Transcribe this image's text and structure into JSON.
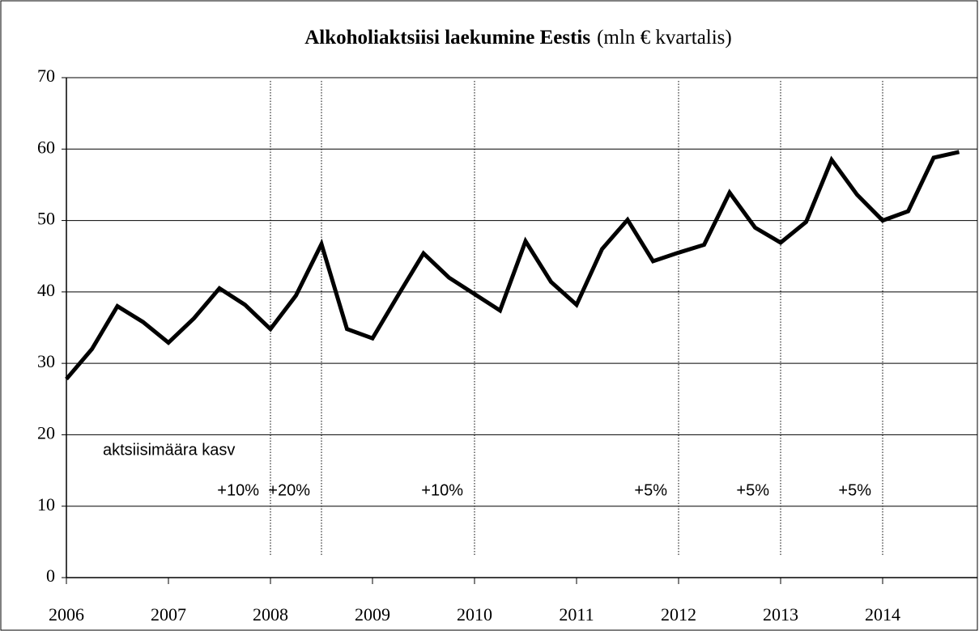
{
  "chart_data": {
    "type": "line",
    "title": "Alkoholiaktsiisi laekumine Eestis",
    "subtitle": "(mln € kvartalis)",
    "x": [
      2006,
      2006.25,
      2006.5,
      2006.75,
      2007,
      2007.25,
      2007.5,
      2007.75,
      2008,
      2008.25,
      2008.5,
      2008.75,
      2009,
      2009.25,
      2009.5,
      2009.75,
      2010,
      2010.25,
      2010.5,
      2010.75,
      2011,
      2011.25,
      2011.5,
      2011.75,
      2012,
      2012.25,
      2012.5,
      2012.75,
      2013,
      2013.25,
      2013.5,
      2013.75,
      2014,
      2014.25,
      2014.5,
      2014.75
    ],
    "series": [
      {
        "color": "#000000",
        "values": [
          27.8,
          32,
          38,
          35.8,
          32.9,
          36.3,
          40.5,
          38.2,
          34.8,
          39.5,
          46.7,
          34.8,
          33.5,
          39.5,
          45.4,
          42,
          39.7,
          37.4,
          47.1,
          41.4,
          38.2,
          46,
          50.1,
          44.3,
          45.5,
          46.6,
          53.9,
          49,
          46.9,
          49.8,
          58.5,
          53.6,
          50,
          51.3,
          58.8,
          59.6
        ]
      }
    ],
    "xlim": [
      2006,
      2015
    ],
    "xticks": [
      2006,
      2007,
      2008,
      2009,
      2010,
      2011,
      2012,
      2013,
      2014
    ],
    "ylim": [
      0,
      70
    ],
    "yticks": [
      0,
      10,
      20,
      30,
      40,
      50,
      60,
      70
    ],
    "grid": true,
    "annotation_title": "aktsiisimäära kasv",
    "annotations": [
      {
        "x": 2008,
        "label": "+10%"
      },
      {
        "x": 2008.5,
        "label": "+20%"
      },
      {
        "x": 2010,
        "label": "+10%"
      },
      {
        "x": 2012,
        "label": "+5%"
      },
      {
        "x": 2013,
        "label": "+5%"
      },
      {
        "x": 2014,
        "label": "+5%"
      }
    ]
  }
}
